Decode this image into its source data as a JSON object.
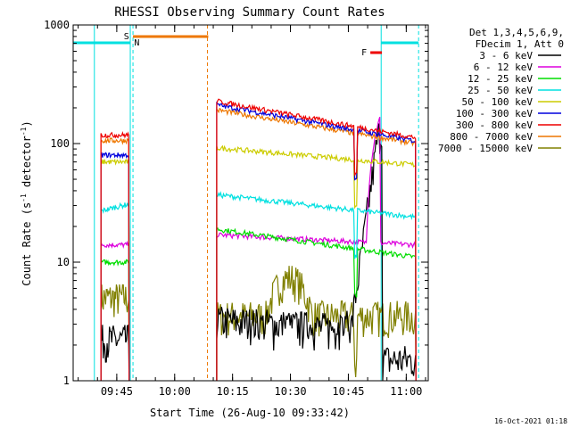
{
  "chart_data": {
    "type": "line",
    "title": "RHESSI Observing Summary Count Rates",
    "xlabel": "Start Time (26-Aug-10 09:33:42)",
    "ylabel_main": "Count Rate (s",
    "ylabel_sup1": "-1",
    "ylabel_mid": " detector",
    "ylabel_sup2": "-1",
    "ylabel_end": ")",
    "yscale": "log",
    "ylim": [
      1,
      1000
    ],
    "xlim_min": [
      0,
      92
    ],
    "y_ticks": [
      {
        "value": 1,
        "label": "1"
      },
      {
        "value": 10,
        "label": "10"
      },
      {
        "value": 100,
        "label": "100"
      },
      {
        "value": 1000,
        "label": "1000"
      }
    ],
    "x_ticks": [
      {
        "value": 11.3,
        "label": "09:45"
      },
      {
        "value": 26.3,
        "label": "10:00"
      },
      {
        "value": 41.3,
        "label": "10:15"
      },
      {
        "value": 56.3,
        "label": "10:30"
      },
      {
        "value": 71.3,
        "label": "10:45"
      },
      {
        "value": 86.3,
        "label": "11:00"
      }
    ],
    "info_lines": [
      "Det 1,3,4,5,6,9,",
      "FDecim 1, Att 0"
    ],
    "date_stamp": "16-Oct-2021 01:18",
    "series": [
      {
        "name": "3 - 6 keV",
        "color": "#000000",
        "seg1": 2.2,
        "seg2_start": 3.2,
        "seg2_end": 2.5
      },
      {
        "name": "6 - 12 keV",
        "color": "#dd00dd",
        "seg1": 14,
        "seg2_start": 17,
        "seg2_end": 14
      },
      {
        "name": "12 - 25 keV",
        "color": "#00dd00",
        "seg1": 10,
        "seg2_start": 19,
        "seg2_end": 11
      },
      {
        "name": "25 - 50 keV",
        "color": "#00e0e0",
        "seg1": 27,
        "seg2_start": 37,
        "seg2_end": 24
      },
      {
        "name": "50 - 100 keV",
        "color": "#cccc00",
        "seg1": 70,
        "seg2_start": 92,
        "seg2_end": 66
      },
      {
        "name": "100 - 300 keV",
        "color": "#0000dd",
        "seg1": 80,
        "seg2_start": 212,
        "seg2_end": 105
      },
      {
        "name": "300 - 800 keV",
        "color": "#ee0000",
        "seg1": 118,
        "seg2_start": 228,
        "seg2_end": 112
      },
      {
        "name": "800 - 7000 keV",
        "color": "#ee7700",
        "seg1": 106,
        "seg2_start": 192,
        "seg2_end": 100
      },
      {
        "name": "7000 - 15000 keV",
        "color": "#808000",
        "seg1": 5,
        "seg2_start": 3.5,
        "seg2_end": 3.5
      }
    ],
    "flag_S": {
      "label": "S",
      "color": "#ee7700",
      "x_start": 18,
      "x_end": 35
    },
    "flag_N": {
      "label": "N",
      "color": "#00e0e0"
    },
    "flag_F": {
      "label": "F",
      "color": "#ee0000",
      "x_start": 77,
      "x_end": 80
    }
  }
}
